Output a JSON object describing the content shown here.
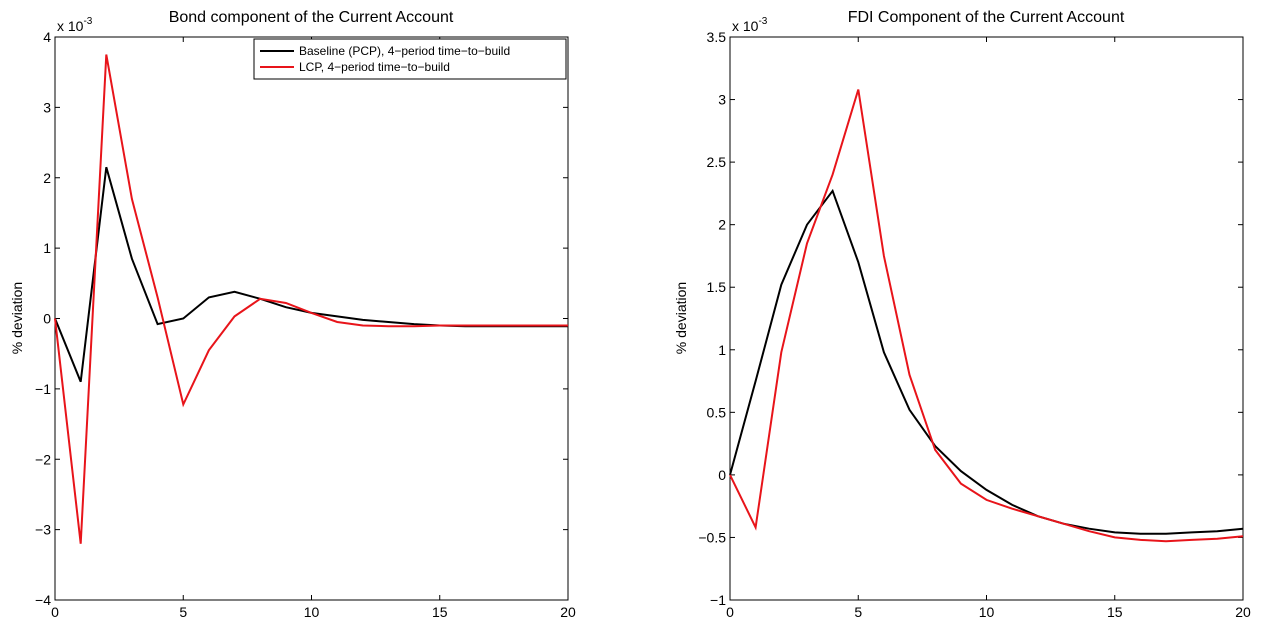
{
  "chart_data": [
    {
      "type": "line",
      "title": "Bond component of the Current Account",
      "ylabel": "% deviation",
      "xlabel": "",
      "multiplier_label": "x 10",
      "multiplier_exp": "-3",
      "xlim": [
        0,
        20
      ],
      "ylim": [
        -4,
        4
      ],
      "xticks": [
        0,
        5,
        10,
        15,
        20
      ],
      "yticks": [
        -4,
        -3,
        -2,
        -1,
        0,
        1,
        2,
        3,
        4
      ],
      "xtick_labels": [
        "0",
        "5",
        "10",
        "15",
        "20"
      ],
      "ytick_labels": [
        "−4",
        "−3",
        "−2",
        "−1",
        "0",
        "1",
        "2",
        "3",
        "4"
      ],
      "x": [
        0,
        1,
        2,
        3,
        4,
        5,
        6,
        7,
        8,
        9,
        10,
        11,
        12,
        13,
        14,
        15,
        16,
        17,
        18,
        19,
        20
      ],
      "legend_position": "top-right",
      "series": [
        {
          "name": "Baseline (PCP), 4−period time−to−build",
          "color": "#000000",
          "values": [
            0,
            -0.9,
            2.15,
            0.85,
            -0.08,
            0.0,
            0.3,
            0.38,
            0.28,
            0.16,
            0.08,
            0.03,
            -0.02,
            -0.05,
            -0.08,
            -0.1,
            -0.11,
            -0.11,
            -0.11,
            -0.11,
            -0.11
          ]
        },
        {
          "name": "LCP, 4−period time−to−build",
          "color": "#e8141a",
          "values": [
            0,
            -3.2,
            3.75,
            1.7,
            0.3,
            -1.22,
            -0.45,
            0.03,
            0.28,
            0.22,
            0.08,
            -0.05,
            -0.1,
            -0.11,
            -0.11,
            -0.1,
            -0.1,
            -0.1,
            -0.1,
            -0.1,
            -0.1
          ]
        }
      ]
    },
    {
      "type": "line",
      "title": "FDI Component of the Current Account",
      "ylabel": "% deviation",
      "xlabel": "",
      "multiplier_label": "x 10",
      "multiplier_exp": "-3",
      "xlim": [
        0,
        20
      ],
      "ylim": [
        -1,
        3.5
      ],
      "xticks": [
        0,
        5,
        10,
        15,
        20
      ],
      "yticks": [
        -1,
        -0.5,
        0,
        0.5,
        1,
        1.5,
        2,
        2.5,
        3,
        3.5
      ],
      "xtick_labels": [
        "0",
        "5",
        "10",
        "15",
        "20"
      ],
      "ytick_labels": [
        "−1",
        "−0.5",
        "0",
        "0.5",
        "1",
        "1.5",
        "2",
        "2.5",
        "3",
        "3.5"
      ],
      "x": [
        0,
        1,
        2,
        3,
        4,
        5,
        6,
        7,
        8,
        9,
        10,
        11,
        12,
        13,
        14,
        15,
        16,
        17,
        18,
        19,
        20
      ],
      "series": [
        {
          "name": "Baseline (PCP), 4−period time−to−build",
          "color": "#000000",
          "values": [
            0,
            0.75,
            1.52,
            2.0,
            2.27,
            1.7,
            0.98,
            0.52,
            0.23,
            0.03,
            -0.12,
            -0.24,
            -0.33,
            -0.39,
            -0.43,
            -0.46,
            -0.47,
            -0.47,
            -0.46,
            -0.45,
            -0.43
          ]
        },
        {
          "name": "LCP, 4−period time−to−build",
          "color": "#e8141a",
          "values": [
            0,
            -0.42,
            0.98,
            1.85,
            2.4,
            3.08,
            1.75,
            0.8,
            0.2,
            -0.07,
            -0.2,
            -0.27,
            -0.33,
            -0.39,
            -0.45,
            -0.5,
            -0.52,
            -0.53,
            -0.52,
            -0.51,
            -0.49
          ]
        }
      ]
    }
  ]
}
